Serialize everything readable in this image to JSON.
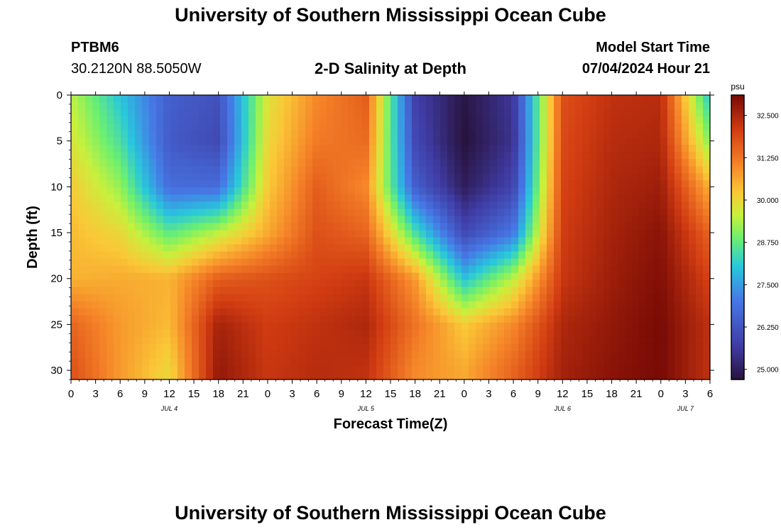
{
  "header": {
    "title": "University of Southern Mississippi Ocean Cube",
    "station_id": "PTBM6",
    "coords": "30.2120N  88.5050W",
    "subtitle": "2-D Salinity at Depth",
    "model_label": "Model Start Time",
    "model_time": "07/04/2024 Hour 21"
  },
  "footer": {
    "title": "University of Southern Mississippi Ocean Cube"
  },
  "chart_data": {
    "type": "heatmap",
    "title": "2-D Salinity at Depth",
    "xlabel": "Forecast Time(Z)",
    "ylabel": "Depth (ft)",
    "x_range_hours": [
      0,
      78
    ],
    "y_range_ft": [
      0,
      31
    ],
    "x_tick_labels": [
      "0",
      "3",
      "6",
      "9",
      "12",
      "15",
      "18",
      "21",
      "0",
      "3",
      "6",
      "9",
      "12",
      "15",
      "18",
      "21",
      "0",
      "3",
      "6",
      "9",
      "12",
      "15",
      "18",
      "21",
      "0",
      "3",
      "6"
    ],
    "y_tick_values": [
      0,
      5,
      10,
      15,
      20,
      25,
      30
    ],
    "y_tick_labels": [
      "0",
      "5",
      "10",
      "15",
      "20",
      "25",
      "30"
    ],
    "day_labels": [
      {
        "label": "JUL 4",
        "hour": 12
      },
      {
        "label": "JUL 5",
        "hour": 36
      },
      {
        "label": "JUL 6",
        "hour": 60
      },
      {
        "label": "JUL 7",
        "hour": 75
      }
    ],
    "colorbar": {
      "unit": "psu",
      "range": [
        24.7,
        33.1
      ],
      "tick_values": [
        25.0,
        26.25,
        27.5,
        28.75,
        30.0,
        31.25,
        32.5
      ],
      "tick_labels": [
        "25.000",
        "26.250",
        "27.500",
        "28.750",
        "30.000",
        "31.250",
        "32.500"
      ]
    },
    "time_hours": [
      0,
      6,
      12,
      18,
      24,
      30,
      36,
      42,
      48,
      54,
      60,
      66,
      72,
      78
    ],
    "depth_ft": [
      0,
      5,
      10,
      15,
      20,
      25,
      30
    ],
    "salinity_psu": [
      [
        29.5,
        28.0,
        26.5,
        26.2,
        29.8,
        31.0,
        31.6,
        25.8,
        24.8,
        25.6,
        31.8,
        32.3,
        32.4,
        28.0
      ],
      [
        29.8,
        28.5,
        26.4,
        26.0,
        30.0,
        31.2,
        31.4,
        26.0,
        24.7,
        25.5,
        31.9,
        32.4,
        32.5,
        29.0
      ],
      [
        30.2,
        29.2,
        26.8,
        26.8,
        30.2,
        31.6,
        31.0,
        26.5,
        25.0,
        25.9,
        32.0,
        32.5,
        32.7,
        30.5
      ],
      [
        30.4,
        30.0,
        28.7,
        29.5,
        30.6,
        31.8,
        31.5,
        28.5,
        26.0,
        27.0,
        32.1,
        32.6,
        32.9,
        31.5
      ],
      [
        30.5,
        30.6,
        30.5,
        31.6,
        31.8,
        32.0,
        32.2,
        30.8,
        28.0,
        29.5,
        32.2,
        32.7,
        33.0,
        32.0
      ],
      [
        31.5,
        30.8,
        30.4,
        32.6,
        32.1,
        32.3,
        32.5,
        31.3,
        30.2,
        31.0,
        32.5,
        32.8,
        33.1,
        32.3
      ],
      [
        31.8,
        30.8,
        30.0,
        32.8,
        32.2,
        32.4,
        32.3,
        31.0,
        30.6,
        31.5,
        32.6,
        32.9,
        33.1,
        32.3
      ]
    ]
  }
}
